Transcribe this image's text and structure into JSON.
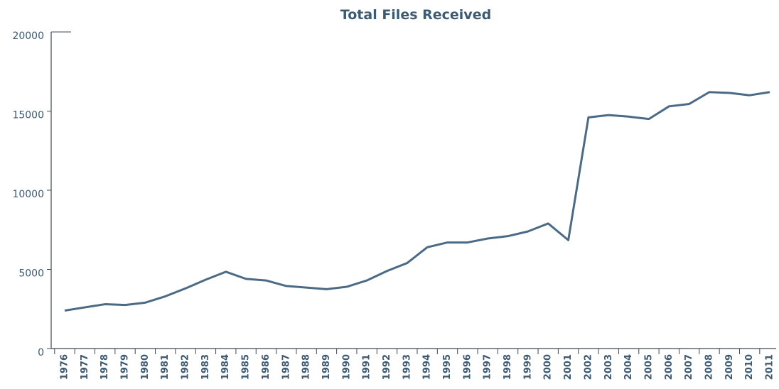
{
  "chart_data": {
    "type": "line",
    "title": "Total Files Received",
    "x": [
      1976,
      1977,
      1978,
      1979,
      1980,
      1981,
      1982,
      1983,
      1984,
      1985,
      1986,
      1987,
      1988,
      1989,
      1990,
      1991,
      1992,
      1993,
      1994,
      1995,
      1996,
      1997,
      1998,
      1999,
      2000,
      2001,
      2002,
      2003,
      2004,
      2005,
      2006,
      2007,
      2008,
      2009,
      2010,
      2011
    ],
    "series": [
      {
        "name": "Total Files Received",
        "color": "#4a6a85",
        "values": [
          2400,
          2600,
          2800,
          2750,
          2900,
          3300,
          3800,
          4350,
          4850,
          4400,
          4300,
          3950,
          3850,
          3750,
          3900,
          4300,
          4900,
          5400,
          6400,
          6700,
          6700,
          6950,
          7100,
          7400,
          7900,
          6850,
          14600,
          14750,
          14650,
          14500,
          15300,
          15450,
          16200,
          16150,
          16000,
          16200
        ]
      }
    ],
    "ylim": [
      0,
      20000
    ],
    "yticks": [
      0,
      5000,
      10000,
      15000,
      20000
    ],
    "grid": false
  }
}
